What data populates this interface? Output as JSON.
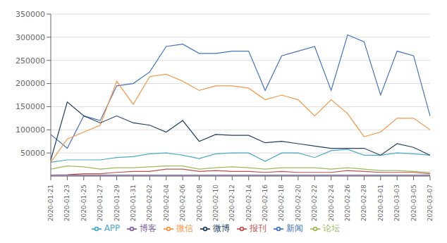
{
  "chart_data": {
    "type": "line",
    "categories": [
      "2020-01-21",
      "2020-01-23",
      "2020-01-25",
      "2020-01-27",
      "2020-01-29",
      "2020-01-31",
      "2020-02-02",
      "2020-02-04",
      "2020-02-06",
      "2020-02-08",
      "2020-02-10",
      "2020-02-12",
      "2020-02-14",
      "2020-02-16",
      "2020-02-18",
      "2020-02-20",
      "2020-02-22",
      "2020-02-24",
      "2020-02-26",
      "2020-02-28",
      "2020-03-01",
      "2020-03-03",
      "2020-03-05",
      "2020-03-07"
    ],
    "series": [
      {
        "name": "新闻",
        "color": "#4472C4",
        "values": [
          90000,
          60000,
          130000,
          120000,
          195000,
          200000,
          225000,
          280000,
          285000,
          265000,
          265000,
          270000,
          270000,
          185000,
          260000,
          270000,
          280000,
          185000,
          305000,
          290000,
          175000,
          270000,
          260000,
          130000
        ]
      },
      {
        "name": "报刊",
        "color": "#C0504D",
        "values": [
          2000,
          3000,
          5000,
          5000,
          8000,
          10000,
          10000,
          15000,
          15000,
          10000,
          12000,
          10000,
          10000,
          8000,
          10000,
          8000,
          8000,
          8000,
          12000,
          10000,
          8000,
          8000,
          8000,
          5000
        ]
      },
      {
        "name": "论坛",
        "color": "#9BBB59",
        "values": [
          15000,
          22000,
          20000,
          15000,
          18000,
          18000,
          20000,
          22000,
          22000,
          15000,
          18000,
          20000,
          18000,
          15000,
          18000,
          18000,
          18000,
          15000,
          18000,
          15000,
          12000,
          12000,
          10000,
          8000
        ]
      },
      {
        "name": "博客",
        "color": "#8064A2",
        "values": [
          2000,
          2000,
          2000,
          2000,
          2000,
          2000,
          2000,
          2000,
          2000,
          2000,
          2000,
          2000,
          2000,
          2000,
          2000,
          2000,
          2000,
          2000,
          2000,
          2000,
          2000,
          2000,
          2000,
          2000
        ]
      },
      {
        "name": "APP",
        "color": "#4BACC6",
        "values": [
          30000,
          35000,
          35000,
          35000,
          40000,
          42000,
          48000,
          50000,
          45000,
          38000,
          48000,
          50000,
          50000,
          32000,
          50000,
          50000,
          40000,
          55000,
          58000,
          45000,
          45000,
          50000,
          48000,
          45000
        ]
      },
      {
        "name": "微信",
        "color": "#F79646",
        "values": [
          30000,
          80000,
          95000,
          110000,
          205000,
          155000,
          215000,
          220000,
          205000,
          185000,
          195000,
          195000,
          190000,
          165000,
          175000,
          165000,
          130000,
          165000,
          135000,
          85000,
          95000,
          125000,
          125000,
          100000
        ]
      },
      {
        "name": "微博",
        "color": "#243F60",
        "values": [
          35000,
          160000,
          130000,
          115000,
          130000,
          115000,
          110000,
          95000,
          120000,
          75000,
          90000,
          88000,
          88000,
          72000,
          75000,
          70000,
          65000,
          60000,
          60000,
          60000,
          45000,
          70000,
          62000,
          45000
        ]
      }
    ],
    "ylim": [
      0,
      350000
    ],
    "yticks": [
      50000,
      100000,
      150000,
      200000,
      250000,
      300000,
      350000
    ],
    "grid": true,
    "legend": "bottom"
  }
}
